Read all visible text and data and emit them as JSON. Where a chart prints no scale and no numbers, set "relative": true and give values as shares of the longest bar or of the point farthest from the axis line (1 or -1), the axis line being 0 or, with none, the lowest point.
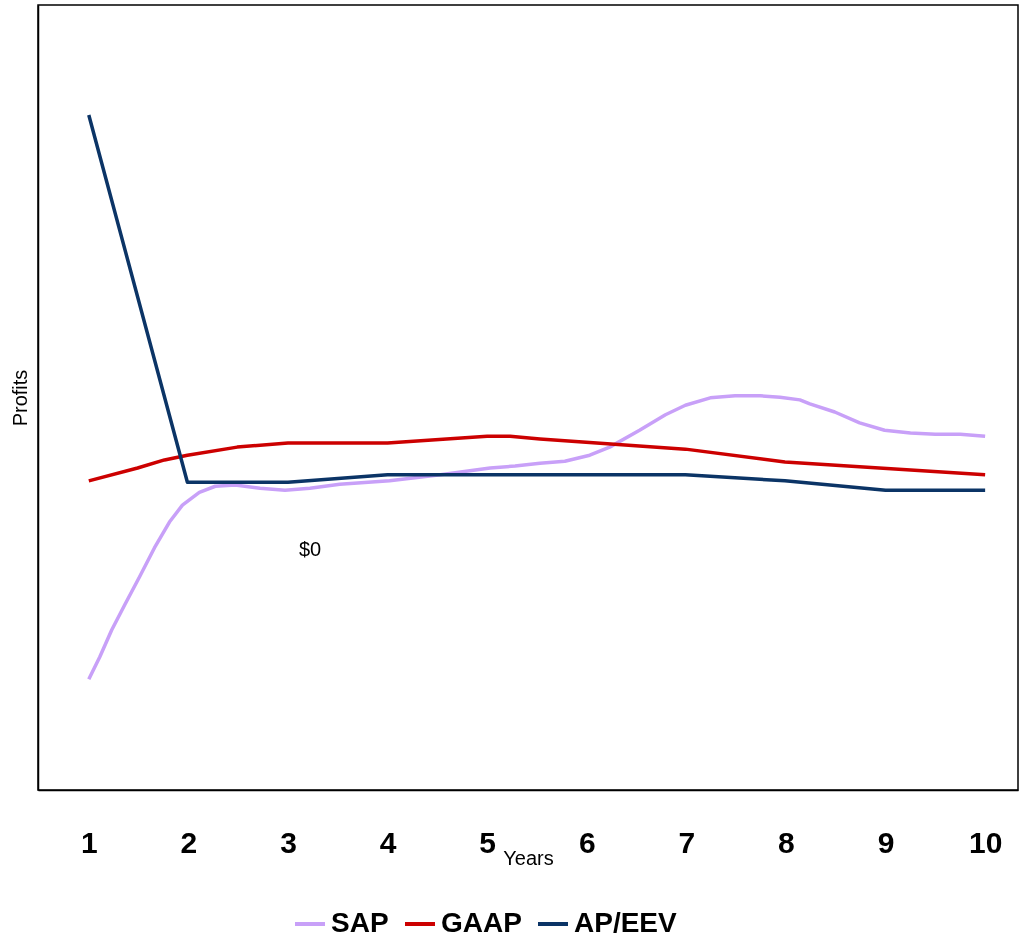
{
  "chart_data": {
    "type": "line",
    "relative": true,
    "xlabel": "Years",
    "ylabel": "Profits",
    "xlim": [
      0.49,
      10.33
    ],
    "xticks": [
      1,
      2,
      3,
      4,
      5,
      6,
      7,
      8,
      9,
      10
    ],
    "annotations": [
      "$0"
    ],
    "legend": "bottom",
    "grid": false,
    "marker": "none",
    "line_style": "solid",
    "series": [
      {
        "name": "SAP",
        "color": "#c8a0f8",
        "x": [
          1,
          1.11,
          1.23,
          1.36,
          1.51,
          1.66,
          1.81,
          1.94,
          2.11,
          2.27,
          2.47,
          2.72,
          2.97,
          3.22,
          3.52,
          4.02,
          4.53,
          5.03,
          5.28,
          5.53,
          5.78,
          6.03,
          6.23,
          6.53,
          6.79,
          6.99,
          7.24,
          7.49,
          7.74,
          7.94,
          8.14,
          8.24,
          8.49,
          8.74,
          8.99,
          9.25,
          9.5,
          9.75,
          10
        ],
        "values": [
          0.164,
          0.197,
          0.237,
          0.274,
          0.316,
          0.359,
          0.397,
          0.422,
          0.441,
          0.45,
          0.452,
          0.447,
          0.444,
          0.447,
          0.453,
          0.458,
          0.467,
          0.477,
          0.48,
          0.484,
          0.487,
          0.496,
          0.508,
          0.533,
          0.556,
          0.57,
          0.581,
          0.584,
          0.584,
          0.582,
          0.578,
          0.572,
          0.56,
          0.544,
          0.533,
          0.529,
          0.527,
          0.527,
          0.524
        ]
      },
      {
        "name": "GAAP",
        "color": "#cc0000",
        "x": [
          1,
          1.49,
          1.76,
          1.99,
          2.49,
          3,
          4,
          5,
          5.23,
          5.53,
          6.99,
          7.99,
          10
        ],
        "values": [
          0.458,
          0.477,
          0.489,
          0.496,
          0.508,
          0.514,
          0.514,
          0.524,
          0.524,
          0.52,
          0.505,
          0.486,
          0.467
        ]
      },
      {
        "name": "AP/EEV",
        "color": "#0b3466",
        "x": [
          1,
          1.99,
          3,
          4,
          6.99,
          7.99,
          9,
          10
        ],
        "values": [
          1.0,
          0.456,
          0.456,
          0.467,
          0.467,
          0.458,
          0.444,
          0.444
        ]
      }
    ]
  }
}
